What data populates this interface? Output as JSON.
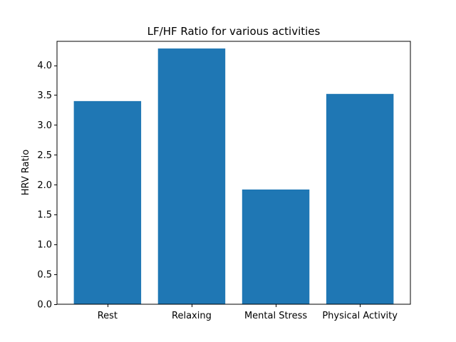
{
  "chart_data": {
    "type": "bar",
    "title": "LF/HF Ratio for various activities",
    "xlabel": "",
    "ylabel": "HRV Ratio",
    "categories": [
      "Rest",
      "Relaxing",
      "Mental Stress",
      "Physical Activity"
    ],
    "values": [
      3.4,
      4.28,
      1.92,
      3.52
    ],
    "ylim": [
      0,
      4.4
    ],
    "yticks": [
      "0.0",
      "0.5",
      "1.0",
      "1.5",
      "2.0",
      "2.5",
      "3.0",
      "3.5",
      "4.0"
    ],
    "bar_color": "#1f77b4",
    "grid": false
  }
}
